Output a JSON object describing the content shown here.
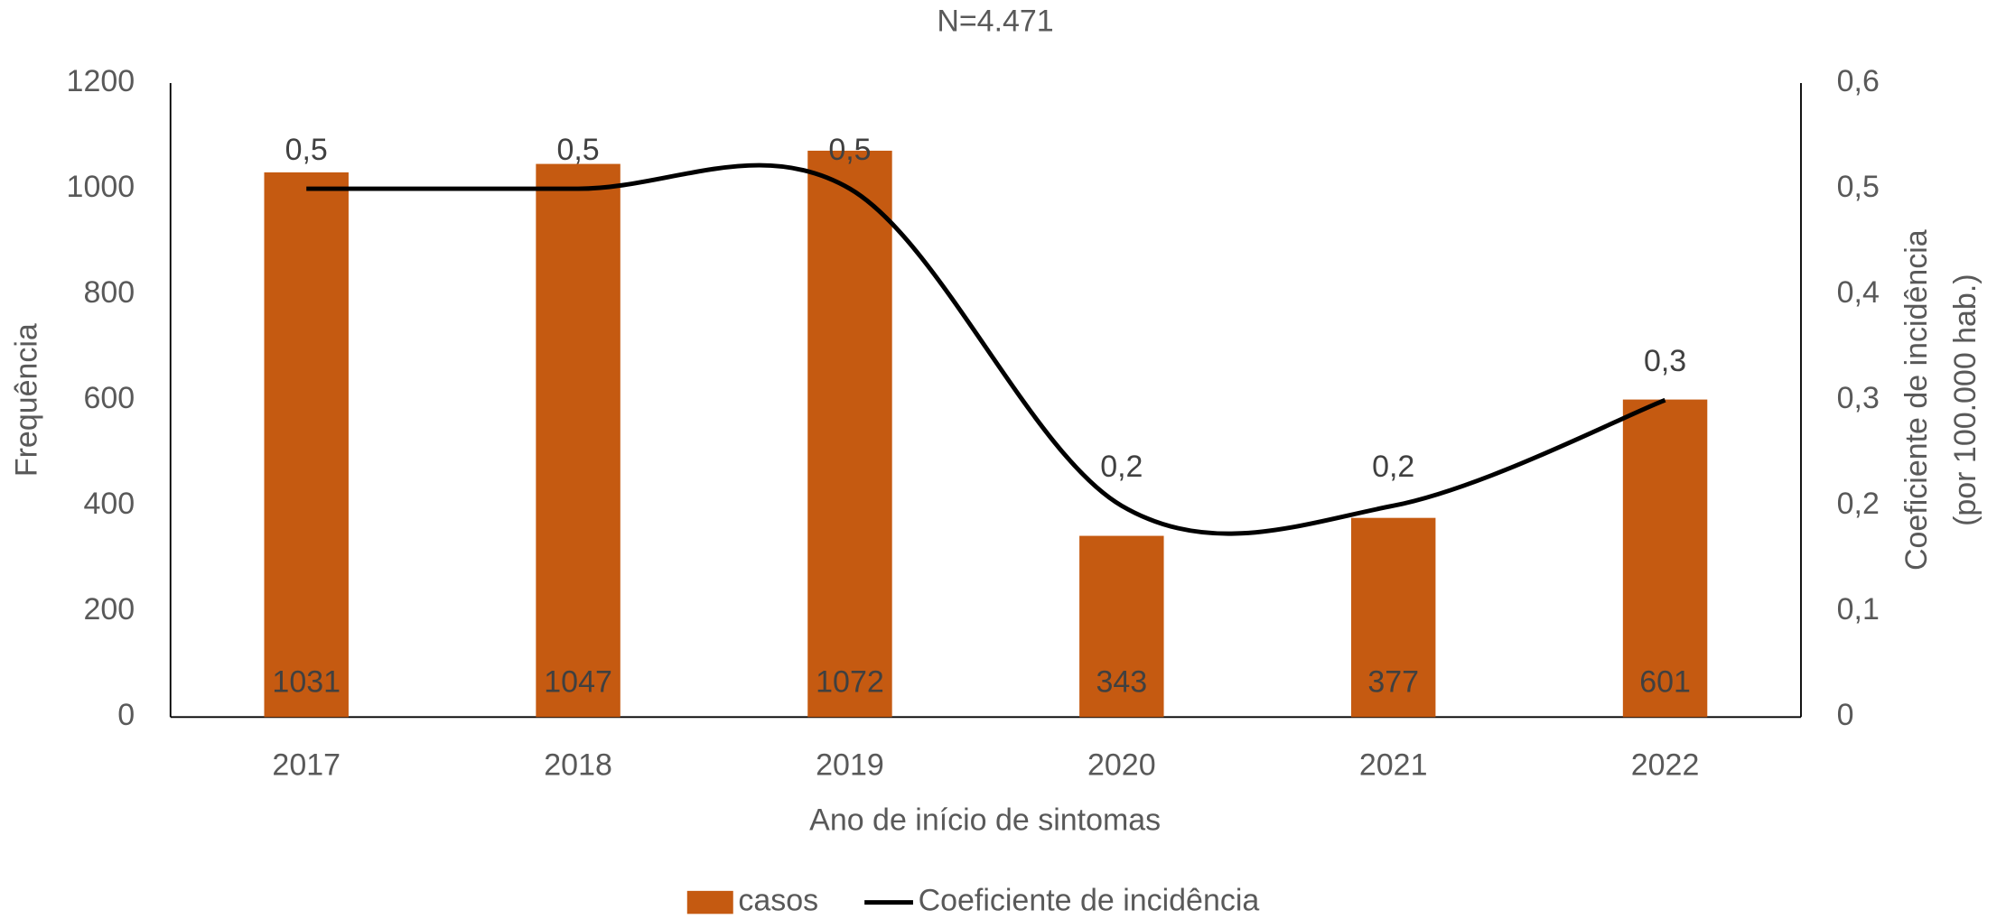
{
  "chart_data": {
    "type": "bar-line",
    "title": "N=4.471",
    "x_label": "Ano de início de sintomas",
    "y_label": "Frequência",
    "y2_label": [
      "Coeficiente de incidência",
      "(por 100.000 hab.)"
    ],
    "categories": [
      "2017",
      "2018",
      "2019",
      "2020",
      "2021",
      "2022"
    ],
    "series": [
      {
        "name": "casos",
        "type": "bar",
        "color": "#c55a11",
        "values": [
          1031,
          1047,
          1072,
          343,
          377,
          601
        ]
      },
      {
        "name": "Coeficiente de incidência",
        "type": "line",
        "axis": "y2",
        "color": "#000000",
        "smooth": true,
        "values": [
          0.5,
          0.5,
          0.5,
          0.2,
          0.2,
          0.3
        ],
        "value_labels": [
          "0,5",
          "0,5",
          "0,5",
          "0,2",
          "0,2",
          "0,3"
        ]
      }
    ],
    "ylim": [
      0,
      1200
    ],
    "yticks": [
      0,
      200,
      400,
      600,
      800,
      1000,
      1200
    ],
    "y2lim": [
      0,
      0.6
    ],
    "y2ticks": [
      0,
      {
        "value": 0.1,
        "label": "0,1"
      },
      {
        "value": 0.2,
        "label": "0,2"
      },
      {
        "value": 0.3,
        "label": "0,3"
      },
      {
        "value": 0.4,
        "label": "0,4"
      },
      {
        "value": 0.5,
        "label": "0,5"
      },
      {
        "value": 0.6,
        "label": "0,6"
      }
    ],
    "legend": "bottom"
  }
}
